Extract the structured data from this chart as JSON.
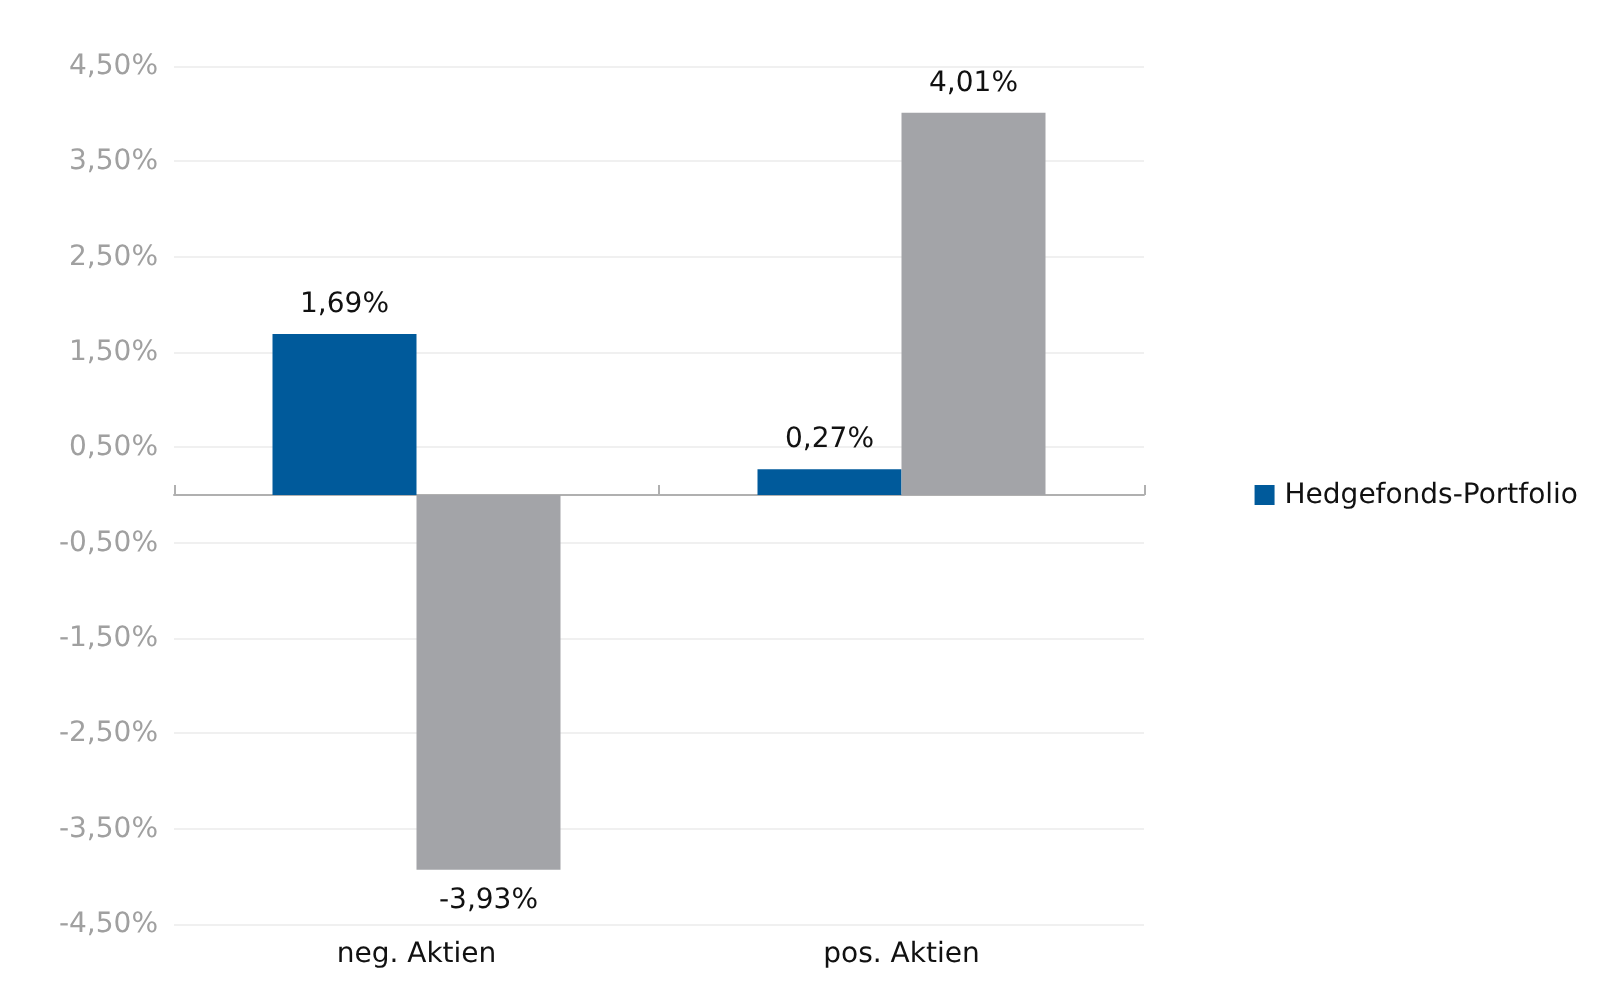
{
  "chart_data": {
    "type": "bar",
    "categories": [
      "neg. Aktien",
      "pos. Aktien"
    ],
    "series": [
      {
        "name": "Hedgefonds-Portfolio",
        "color": "#005a9b",
        "values": [
          1.69,
          0.27
        ],
        "value_labels": [
          "1,69%",
          "0,27%"
        ]
      },
      {
        "color": "#a3a4a8",
        "values": [
          -3.93,
          4.01
        ],
        "value_labels": [
          "-3,93%",
          "4,01%"
        ]
      }
    ],
    "ylim": [
      -4.5,
      4.5
    ],
    "yticks": [
      {
        "value": -4.5,
        "label": "-4,50%"
      },
      {
        "value": -3.5,
        "label": "-3,50%"
      },
      {
        "value": -2.5,
        "label": "-2,50%"
      },
      {
        "value": -1.5,
        "label": "-1,50%"
      },
      {
        "value": -0.5,
        "label": "-0,50%"
      },
      {
        "value": 0.5,
        "label": "0,50%"
      },
      {
        "value": 1.5,
        "label": "1,50%"
      },
      {
        "value": 2.5,
        "label": "2,50%"
      },
      {
        "value": 3.5,
        "label": "3,50%"
      },
      {
        "value": 4.5,
        "label": "4,50%"
      }
    ],
    "grid": "y",
    "legend": "right"
  }
}
